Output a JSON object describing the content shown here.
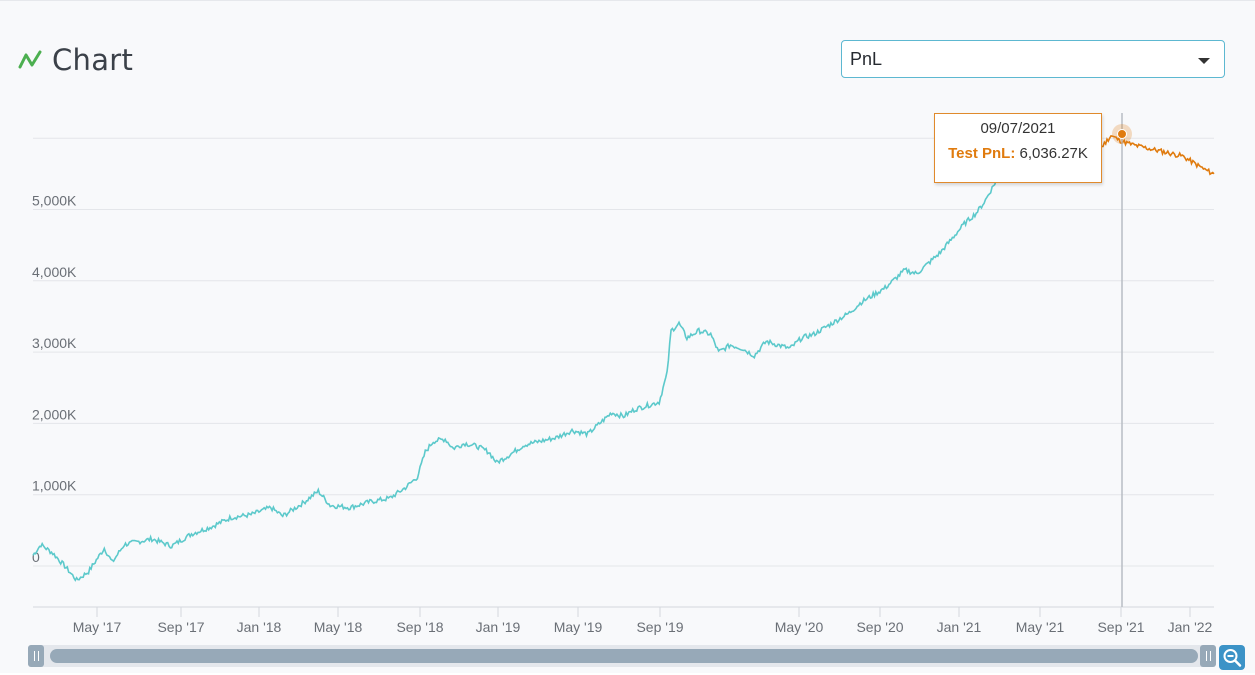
{
  "header": {
    "title": "Chart",
    "icon": "line-chart-icon",
    "icon_color": "#4caf50"
  },
  "metric_select": {
    "selected": "PnL",
    "icon": "chevron-down-icon"
  },
  "tooltip": {
    "date": "09/07/2021",
    "series_label": "Test PnL:",
    "value": "6,036.27K"
  },
  "colors": {
    "train_line": "#5cc9cb",
    "test_line": "#e07b0e",
    "grid": "#e4e6ea",
    "crosshair": "#b8bdc4"
  },
  "chart_data": {
    "type": "line",
    "x_ticks": [
      "May '17",
      "Sep '17",
      "Jan '18",
      "May '18",
      "Sep '18",
      "Jan '19",
      "May '19",
      "Sep '19",
      "May '20",
      "Sep '20",
      "Jan '21",
      "May '21",
      "Sep '21",
      "Jan '22"
    ],
    "y_ticks": [
      "0",
      "1,000K",
      "2,000K",
      "3,000K",
      "4,000K",
      "5,000K"
    ],
    "ylim": [
      -600,
      6500
    ],
    "grid": "horizontal",
    "series": [
      {
        "values_k": [
          [
            0,
            150
          ],
          [
            2,
            300
          ],
          [
            5,
            180
          ],
          [
            8,
            0
          ],
          [
            11,
            -200
          ],
          [
            14,
            -80
          ],
          [
            18,
            250
          ],
          [
            20,
            50
          ],
          [
            23,
            300
          ],
          [
            30,
            380
          ],
          [
            35,
            280
          ],
          [
            40,
            450
          ],
          [
            45,
            550
          ],
          [
            50,
            680
          ],
          [
            55,
            720
          ],
          [
            60,
            820
          ],
          [
            63,
            700
          ],
          [
            68,
            880
          ],
          [
            72,
            1050
          ],
          [
            75,
            850
          ],
          [
            80,
            820
          ],
          [
            85,
            900
          ],
          [
            90,
            950
          ],
          [
            94,
            1100
          ],
          [
            97,
            1250
          ],
          [
            99,
            1600
          ],
          [
            101,
            1750
          ],
          [
            104,
            1780
          ],
          [
            106,
            1650
          ],
          [
            109,
            1720
          ],
          [
            112,
            1680
          ],
          [
            115,
            1600
          ],
          [
            117,
            1450
          ],
          [
            120,
            1550
          ],
          [
            124,
            1700
          ],
          [
            128,
            1750
          ],
          [
            132,
            1800
          ],
          [
            136,
            1900
          ],
          [
            140,
            1850
          ],
          [
            143,
            2000
          ],
          [
            146,
            2150
          ],
          [
            149,
            2100
          ],
          [
            152,
            2200
          ],
          [
            155,
            2250
          ],
          [
            158,
            2300
          ],
          [
            160,
            2700
          ],
          [
            161,
            3300
          ],
          [
            163,
            3400
          ],
          [
            165,
            3200
          ],
          [
            168,
            3300
          ],
          [
            171,
            3250
          ],
          [
            173,
            3000
          ],
          [
            176,
            3100
          ],
          [
            179,
            3050
          ],
          [
            182,
            2950
          ],
          [
            185,
            3150
          ],
          [
            188,
            3100
          ],
          [
            191,
            3050
          ],
          [
            194,
            3200
          ],
          [
            197,
            3250
          ],
          [
            200,
            3350
          ],
          [
            203,
            3450
          ],
          [
            206,
            3550
          ],
          [
            209,
            3700
          ],
          [
            212,
            3800
          ],
          [
            215,
            3900
          ],
          [
            218,
            4050
          ],
          [
            220,
            4150
          ],
          [
            223,
            4100
          ],
          [
            226,
            4250
          ],
          [
            229,
            4400
          ],
          [
            232,
            4600
          ],
          [
            235,
            4800
          ],
          [
            238,
            4950
          ],
          [
            240,
            5100
          ],
          [
            242,
            5300
          ],
          [
            245,
            5600
          ],
          [
            248,
            5700
          ],
          [
            251,
            5650
          ],
          [
            254,
            5600
          ],
          [
            257,
            5700
          ],
          [
            260,
            5800
          ],
          [
            263,
            5750
          ],
          [
            264,
            5850
          ]
        ],
        "test_values_k": [
          [
            264,
            5850
          ],
          [
            267,
            5700
          ],
          [
            270,
            5900
          ],
          [
            272,
            6036
          ],
          [
            275,
            5950
          ],
          [
            278,
            5900
          ],
          [
            282,
            5850
          ],
          [
            286,
            5800
          ],
          [
            290,
            5750
          ],
          [
            293,
            5650
          ],
          [
            296,
            5550
          ],
          [
            298,
            5500
          ]
        ]
      }
    ]
  }
}
